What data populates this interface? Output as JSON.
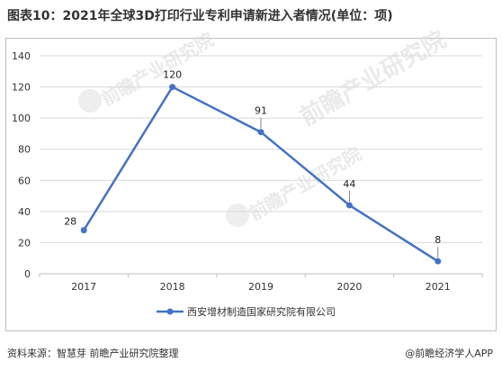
{
  "title": "图表10：2021年全球3D打印行业专利申请新进入者情况(单位：项)",
  "watermark_text": "前瞻产业研究院",
  "source": "资料来源：智慧芽 前瞻产业研究院整理",
  "credit": "@前瞻经济学人APP",
  "colors": {
    "series": "#4472c4",
    "grid": "#d9d9d9",
    "axis": "#bfbfbf",
    "text": "#333333"
  },
  "chart_data": {
    "type": "line",
    "categories": [
      "2017",
      "2018",
      "2019",
      "2020",
      "2021"
    ],
    "series": [
      {
        "name": "西安增材制造国家研究院有限公司",
        "values": [
          28,
          120,
          91,
          44,
          8
        ]
      }
    ],
    "ylim": [
      0,
      140
    ],
    "yticks": [
      0,
      20,
      40,
      60,
      80,
      100,
      120,
      140
    ],
    "grid": "horizontal",
    "data_labels": true,
    "legend_position": "bottom"
  }
}
